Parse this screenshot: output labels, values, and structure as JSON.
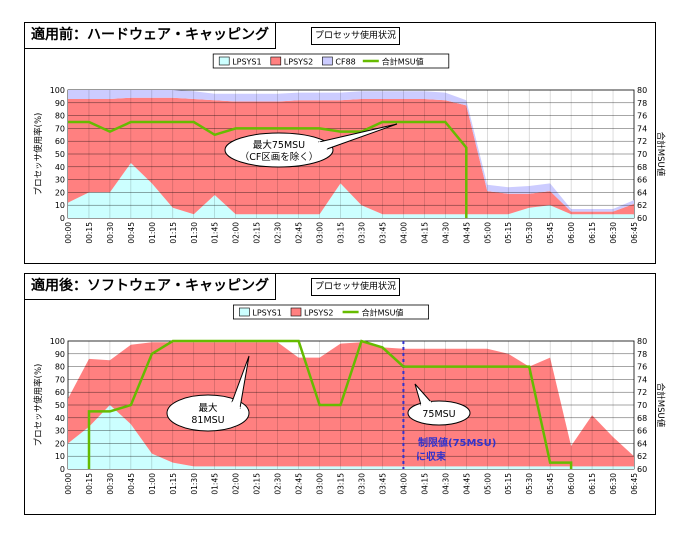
{
  "chart_data": [
    {
      "type": "area",
      "title": "適用前：ハードウェア・キャッピング",
      "subtitle": "プロセッサ使用状況",
      "ylabel": "プロセッサ使用率(%)",
      "y2label": "合計MSU値",
      "ylim": [
        0,
        100
      ],
      "yticks": [
        0,
        10,
        20,
        30,
        40,
        50,
        60,
        70,
        80,
        90,
        100
      ],
      "y2lim": [
        60,
        80
      ],
      "y2ticks": [
        60,
        62,
        64,
        66,
        68,
        70,
        72,
        74,
        76,
        78,
        80
      ],
      "grid": true,
      "legend_position": "top",
      "categories": [
        "00:00",
        "00:15",
        "00:30",
        "00:45",
        "01:00",
        "01:15",
        "01:30",
        "01:45",
        "02:00",
        "02:15",
        "02:30",
        "02:45",
        "03:00",
        "03:15",
        "03:30",
        "03:45",
        "04:00",
        "04:15",
        "04:30",
        "04:45",
        "05:00",
        "05:15",
        "05:30",
        "05:45",
        "06:00",
        "06:15",
        "06:30",
        "06:45"
      ],
      "series": [
        {
          "name": "LPSYS1",
          "kind": "area",
          "axis": "left",
          "color": "#ccffff",
          "values": [
            12,
            20,
            20,
            43,
            27,
            8,
            3,
            18,
            3,
            3,
            3,
            3,
            3,
            27,
            10,
            3,
            3,
            3,
            3,
            3,
            3,
            3,
            8,
            10,
            3,
            3,
            3,
            3
          ]
        },
        {
          "name": "LPSYS2",
          "kind": "area",
          "axis": "left",
          "color": "#ff8080",
          "values": [
            81,
            73,
            73,
            51,
            67,
            86,
            90,
            74,
            88,
            88,
            88,
            89,
            89,
            65,
            83,
            90,
            90,
            90,
            89,
            85,
            18,
            16,
            11,
            11,
            2,
            2,
            2,
            8
          ]
        },
        {
          "name": "CF88",
          "kind": "area",
          "axis": "left",
          "color": "#ccccff",
          "values": [
            7,
            7,
            7,
            6,
            6,
            6,
            6,
            5,
            6,
            6,
            6,
            6,
            6,
            6,
            6,
            6,
            6,
            6,
            6,
            4,
            5,
            5,
            6,
            6,
            2,
            2,
            2,
            3
          ]
        },
        {
          "name": "合計MSU値",
          "kind": "line",
          "axis": "right",
          "color": "#66bb00",
          "values": [
            75,
            75,
            73.5,
            75,
            75,
            75,
            75,
            73,
            74,
            74,
            74,
            74,
            74,
            73.5,
            73.5,
            75,
            75,
            75,
            75,
            71,
            null,
            null,
            null,
            null,
            null,
            null,
            null,
            null
          ],
          "drop_to": 60
        }
      ],
      "annotation": {
        "lines": [
          "最大75MSU",
          "（CF区画を除く）"
        ]
      }
    },
    {
      "type": "area",
      "title": "適用後：ソフトウェア・キャッピング",
      "subtitle": "プロセッサ使用状況",
      "ylabel": "プロセッサ使用率(%)",
      "y2label": "合計MSU値",
      "ylim": [
        0,
        100
      ],
      "yticks": [
        0,
        10,
        20,
        30,
        40,
        50,
        60,
        70,
        80,
        90,
        100
      ],
      "y2lim": [
        60,
        80
      ],
      "y2ticks": [
        60,
        62,
        64,
        66,
        68,
        70,
        72,
        74,
        76,
        78,
        80
      ],
      "grid": true,
      "legend_position": "top",
      "categories": [
        "00:00",
        "00:15",
        "00:30",
        "00:45",
        "01:00",
        "01:15",
        "01:30",
        "01:45",
        "02:00",
        "02:15",
        "02:30",
        "02:45",
        "03:00",
        "03:15",
        "03:30",
        "03:45",
        "04:00",
        "04:15",
        "04:30",
        "04:45",
        "05:00",
        "05:15",
        "05:30",
        "05:45",
        "06:00",
        "06:15",
        "06:30",
        "06:45"
      ],
      "series": [
        {
          "name": "LPSYS1",
          "kind": "area",
          "axis": "left",
          "color": "#ccffff",
          "values": [
            20,
            33,
            50,
            35,
            12,
            5,
            2,
            2,
            2,
            2,
            2,
            2,
            2,
            2,
            2,
            2,
            2,
            2,
            2,
            2,
            2,
            2,
            2,
            2,
            2,
            2,
            2,
            2
          ]
        },
        {
          "name": "LPSYS2",
          "kind": "area",
          "axis": "left",
          "color": "#ff8080",
          "values": [
            35,
            53,
            35,
            62,
            87,
            94,
            97,
            97,
            97,
            97,
            97,
            85,
            85,
            96,
            97,
            93,
            92,
            92,
            92,
            92,
            92,
            88,
            78,
            85,
            16,
            40,
            23,
            8
          ]
        },
        {
          "name": "合計MSU値",
          "kind": "line",
          "axis": "right",
          "color": "#66bb00",
          "values": [
            null,
            69,
            69,
            70,
            78,
            80,
            80,
            80,
            80,
            80,
            80,
            80,
            70,
            70,
            80,
            79,
            76,
            76,
            76,
            76,
            76,
            76,
            76,
            61,
            61,
            null,
            null,
            null
          ],
          "drop_to": 60
        }
      ],
      "limit_marker": {
        "category": "04:00",
        "color": "#3333cc"
      },
      "annotations": [
        {
          "lines": [
            "最大",
            "81MSU"
          ]
        },
        {
          "lines": [
            "75MSU"
          ]
        },
        {
          "lines": [
            "制限値(75MSU)",
            "に収束"
          ]
        }
      ]
    }
  ]
}
